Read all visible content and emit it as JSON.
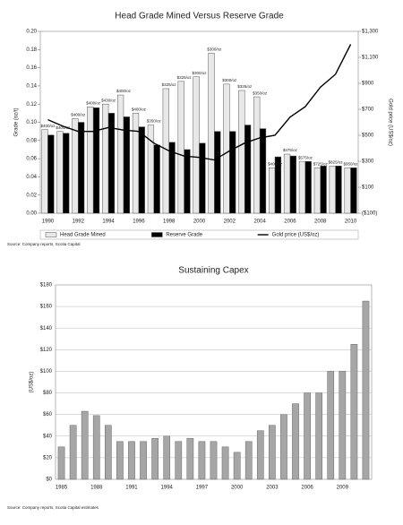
{
  "chart_data": [
    {
      "type": "bar",
      "title": "Head Grade Mined Versus Reserve Grade",
      "ylabel": "Grade (oz/t)",
      "y2label": "Gold price (US$/oz)",
      "source": "Source: Company reports, Scotia Capital",
      "categories": [
        "1990",
        null,
        "1992",
        null,
        "1994",
        null,
        "1996",
        null,
        "1998",
        null,
        "2000",
        null,
        "2002",
        null,
        "2004",
        null,
        "2006",
        null,
        "2008",
        null,
        "2010"
      ],
      "series": [
        {
          "name": "Head Grade Mined",
          "color": "#e8e8e8",
          "values": [
            0.092,
            0.09,
            0.104,
            0.117,
            0.12,
            0.13,
            0.11,
            0.097,
            0.137,
            0.145,
            0.15,
            0.176,
            0.142,
            0.135,
            0.128,
            0.05,
            0.065,
            0.057,
            0.05,
            0.052,
            0.05
          ]
        },
        {
          "name": "Reserve Grade",
          "color": "#000000",
          "values": [
            0.086,
            0.088,
            0.1,
            0.116,
            0.11,
            0.106,
            0.095,
            0.075,
            0.078,
            0.07,
            0.077,
            0.09,
            0.09,
            0.097,
            0.093,
            0.062,
            0.063,
            0.057,
            0.052,
            0.052,
            0.05
          ]
        },
        {
          "name": "Gold price (US$/oz)",
          "color": "#000000",
          "type": "line",
          "axis": "y2",
          "values": [
            620,
            570,
            530,
            530,
            560,
            540,
            530,
            440,
            380,
            340,
            330,
            310,
            380,
            440,
            480,
            500,
            640,
            720,
            870,
            970,
            1200
          ]
        }
      ],
      "bar_annotations": [
        "$400/oz",
        "$400/oz",
        "$400/oz",
        "$400/oz",
        "$430/oz",
        "$400/oz",
        "$400/oz",
        "$350/oz",
        "$325/oz",
        "$325/oz",
        "$300/oz",
        "$300/oz",
        "$300/oz",
        "$325/oz",
        "$350/oz",
        "$400/oz",
        "$475/oz",
        "$575/oz",
        "$725/oz",
        "$825/oz",
        "$950/oz"
      ],
      "ylim": [
        0,
        0.2
      ],
      "yticks": [
        {
          "value": 0,
          "label": "0.00"
        },
        {
          "value": 0.02,
          "label": "0.02"
        },
        {
          "value": 0.04,
          "label": "0.04"
        },
        {
          "value": 0.06,
          "label": "0.06"
        },
        {
          "value": 0.08,
          "label": "0.08"
        },
        {
          "value": 0.1,
          "label": "0.10"
        },
        {
          "value": 0.12,
          "label": "0.12"
        },
        {
          "value": 0.14,
          "label": "0.14"
        },
        {
          "value": 0.16,
          "label": "0.16"
        },
        {
          "value": 0.18,
          "label": "0.18"
        },
        {
          "value": 0.2,
          "label": "0.20"
        }
      ],
      "y2lim": [
        -100,
        1300
      ],
      "y2ticks": [
        {
          "value": -100,
          "label": "($100)"
        },
        {
          "value": 100,
          "label": "$100"
        },
        {
          "value": 300,
          "label": "$300"
        },
        {
          "value": 500,
          "label": "$500"
        },
        {
          "value": 700,
          "label": "$700"
        },
        {
          "value": 900,
          "label": "$900"
        },
        {
          "value": 1100,
          "label": "$1,100"
        },
        {
          "value": 1300,
          "label": "$1,300"
        }
      ],
      "grid": false,
      "legend": "bottom"
    },
    {
      "type": "bar",
      "title": "Sustaining Capex",
      "ylabel": "(US$/oz)",
      "source": "Source: Company reports, Scotia Capital estimates",
      "categories": [
        "1985",
        null,
        null,
        "1988",
        null,
        null,
        "1991",
        null,
        null,
        "1994",
        null,
        null,
        "1997",
        null,
        null,
        "2000",
        null,
        null,
        "2003",
        null,
        null,
        "2006",
        null,
        null,
        "2009",
        null,
        null
      ],
      "values": [
        30,
        50,
        63,
        59,
        50,
        35,
        35,
        35,
        38,
        40,
        35,
        38,
        35,
        35,
        30,
        25,
        35,
        45,
        50,
        60,
        70,
        80,
        80,
        100,
        100,
        125,
        165
      ],
      "color": "#a6a6a6",
      "ylim": [
        0,
        180
      ],
      "yticks": [
        {
          "value": 0,
          "label": "$0"
        },
        {
          "value": 20,
          "label": "$20"
        },
        {
          "value": 40,
          "label": "$40"
        },
        {
          "value": 60,
          "label": "$60"
        },
        {
          "value": 80,
          "label": "$80"
        },
        {
          "value": 100,
          "label": "$100"
        },
        {
          "value": 120,
          "label": "$120"
        },
        {
          "value": 140,
          "label": "$140"
        },
        {
          "value": 160,
          "label": "$160"
        },
        {
          "value": 180,
          "label": "$180"
        }
      ],
      "grid": true
    }
  ]
}
